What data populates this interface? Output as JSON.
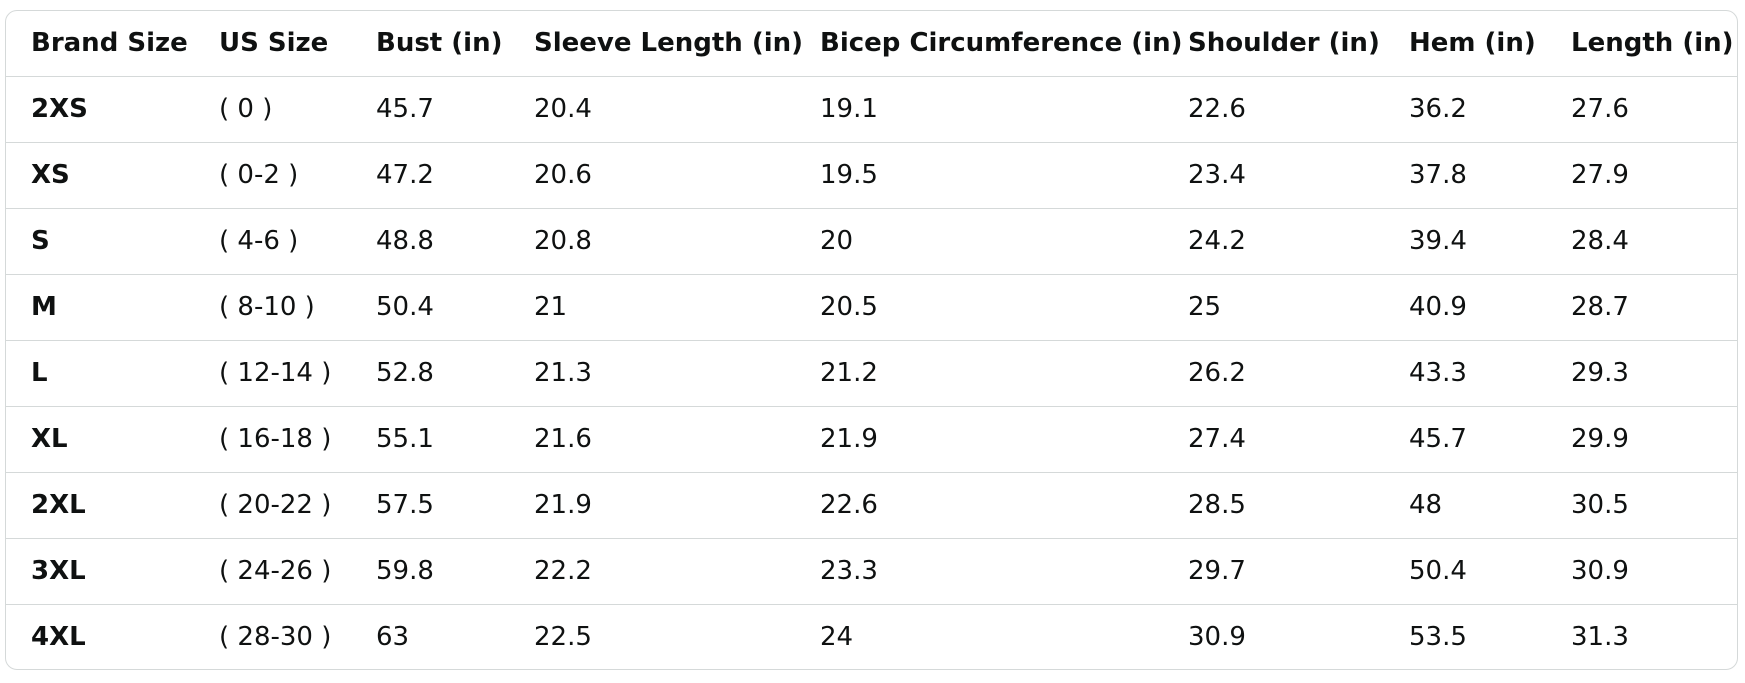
{
  "size_chart": {
    "headers": [
      "Brand Size",
      "US Size",
      "Bust (in)",
      "Sleeve Length (in)",
      "Bicep Circumference (in)",
      "Shoulder (in)",
      "Hem (in)",
      "Length (in)"
    ],
    "rows": [
      [
        "2XS",
        "( 0 )",
        "45.7",
        "20.4",
        "19.1",
        "22.6",
        "36.2",
        "27.6"
      ],
      [
        "XS",
        "( 0-2 )",
        "47.2",
        "20.6",
        "19.5",
        "23.4",
        "37.8",
        "27.9"
      ],
      [
        "S",
        "( 4-6 )",
        "48.8",
        "20.8",
        "20",
        "24.2",
        "39.4",
        "28.4"
      ],
      [
        "M",
        "( 8-10 )",
        "50.4",
        "21",
        "20.5",
        "25",
        "40.9",
        "28.7"
      ],
      [
        "L",
        "( 12-14 )",
        "52.8",
        "21.3",
        "21.2",
        "26.2",
        "43.3",
        "29.3"
      ],
      [
        "XL",
        "( 16-18 )",
        "55.1",
        "21.6",
        "21.9",
        "27.4",
        "45.7",
        "29.9"
      ],
      [
        "2XL",
        "( 20-22 )",
        "57.5",
        "21.9",
        "22.6",
        "28.5",
        "48",
        "30.5"
      ],
      [
        "3XL",
        "( 24-26 )",
        "59.8",
        "22.2",
        "23.3",
        "29.7",
        "50.4",
        "30.9"
      ],
      [
        "4XL",
        "( 28-30 )",
        "63",
        "22.5",
        "24",
        "30.9",
        "53.5",
        "31.3"
      ]
    ]
  },
  "colors": {
    "text": "#0f1111",
    "border": "#d5d9d9",
    "background": "#ffffff"
  }
}
